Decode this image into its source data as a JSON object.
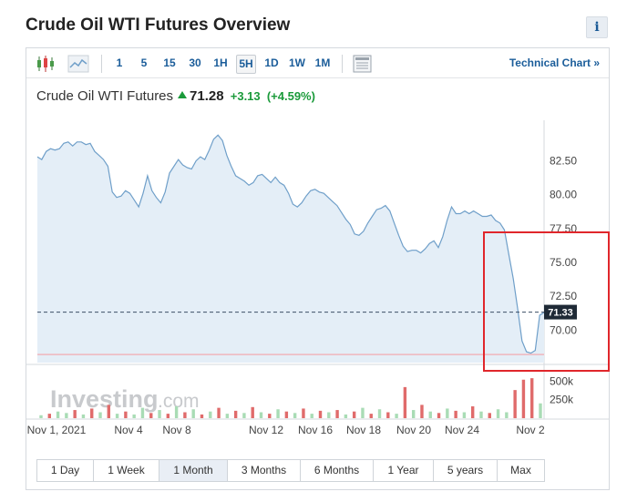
{
  "page": {
    "title": "Crude Oil WTI Futures Overview",
    "info_label": "i"
  },
  "toolbar": {
    "timeframes": [
      "1",
      "5",
      "15",
      "30",
      "1H",
      "5H",
      "1D",
      "1W",
      "1M"
    ],
    "active_timeframe": "5H",
    "technical_chart_label": "Technical Chart »"
  },
  "quote": {
    "name": "Crude Oil WTI Futures",
    "last": "71.28",
    "change": "+3.13",
    "change_pct": "(+4.59%)"
  },
  "ranges": {
    "items": [
      "1 Day",
      "1 Week",
      "1 Month",
      "3 Months",
      "6 Months",
      "1 Year",
      "5 years",
      "Max"
    ],
    "active": "1 Month"
  },
  "watermark": {
    "brand": "Investing",
    "suffix": ".com"
  },
  "colors": {
    "line": "#6f9fc9",
    "area": "#e4eef7",
    "up_volume": "#a9dcb5",
    "down_volume": "#e06b6b",
    "highlight_box": "#e0262b",
    "accent": "#1b5d9a"
  },
  "chart_data": {
    "type": "area",
    "x_tick_labels": [
      "Nov 1, 2021",
      "Nov 4",
      "Nov 8",
      "Nov 12",
      "Nov 16",
      "Nov 18",
      "Nov 20",
      "Nov 24",
      "Nov 2"
    ],
    "y_tick_labels": [
      "82.50",
      "80.00",
      "77.50",
      "75.00",
      "72.50",
      "70.00"
    ],
    "y_ticks": [
      82.5,
      80.0,
      77.5,
      75.0,
      72.5,
      70.0
    ],
    "ylim": [
      67.6,
      85.5
    ],
    "current_price": 71.33,
    "current_price_label": "71.33",
    "lower_reference": 68.2,
    "price": [
      82.8,
      82.6,
      83.2,
      83.4,
      83.3,
      83.4,
      83.8,
      83.9,
      83.6,
      83.9,
      83.9,
      83.7,
      83.8,
      83.2,
      82.9,
      82.6,
      82.1,
      80.2,
      79.8,
      79.9,
      80.3,
      80.1,
      79.6,
      79.1,
      80.1,
      81.4,
      80.3,
      79.8,
      79.4,
      80.2,
      81.6,
      82.1,
      82.6,
      82.2,
      82.0,
      81.9,
      82.5,
      82.8,
      82.6,
      83.3,
      84.1,
      84.4,
      84.0,
      82.9,
      82.1,
      81.4,
      81.2,
      81.0,
      80.7,
      80.9,
      81.4,
      81.5,
      81.2,
      80.9,
      81.3,
      80.9,
      80.7,
      80.1,
      79.3,
      79.1,
      79.4,
      79.9,
      80.3,
      80.4,
      80.2,
      80.1,
      79.8,
      79.5,
      79.2,
      78.7,
      78.2,
      77.8,
      77.1,
      77.0,
      77.3,
      77.9,
      78.4,
      78.9,
      79.0,
      79.2,
      78.8,
      77.9,
      77.0,
      76.2,
      75.8,
      75.9,
      75.9,
      75.7,
      76.0,
      76.4,
      76.6,
      76.1,
      76.9,
      78.1,
      79.1,
      78.6,
      78.6,
      78.8,
      78.6,
      78.8,
      78.6,
      78.4,
      78.4,
      78.5,
      78.1,
      77.9,
      77.4,
      75.6,
      73.8,
      71.6,
      69.2,
      68.4,
      68.3,
      68.5,
      71.1,
      71.3
    ],
    "volume": [
      {
        "v": 40,
        "dir": "up"
      },
      {
        "v": 60,
        "dir": "down"
      },
      {
        "v": 90,
        "dir": "up"
      },
      {
        "v": 70,
        "dir": "up"
      },
      {
        "v": 110,
        "dir": "down"
      },
      {
        "v": 50,
        "dir": "up"
      },
      {
        "v": 130,
        "dir": "down"
      },
      {
        "v": 80,
        "dir": "up"
      },
      {
        "v": 180,
        "dir": "down"
      },
      {
        "v": 60,
        "dir": "up"
      },
      {
        "v": 90,
        "dir": "down"
      },
      {
        "v": 50,
        "dir": "up"
      },
      {
        "v": 140,
        "dir": "up"
      },
      {
        "v": 70,
        "dir": "down"
      },
      {
        "v": 110,
        "dir": "up"
      },
      {
        "v": 60,
        "dir": "down"
      },
      {
        "v": 160,
        "dir": "up"
      },
      {
        "v": 80,
        "dir": "down"
      },
      {
        "v": 120,
        "dir": "up"
      },
      {
        "v": 50,
        "dir": "down"
      },
      {
        "v": 90,
        "dir": "up"
      },
      {
        "v": 140,
        "dir": "down"
      },
      {
        "v": 60,
        "dir": "up"
      },
      {
        "v": 100,
        "dir": "down"
      },
      {
        "v": 70,
        "dir": "up"
      },
      {
        "v": 150,
        "dir": "down"
      },
      {
        "v": 80,
        "dir": "up"
      },
      {
        "v": 60,
        "dir": "down"
      },
      {
        "v": 120,
        "dir": "up"
      },
      {
        "v": 90,
        "dir": "down"
      },
      {
        "v": 70,
        "dir": "up"
      },
      {
        "v": 130,
        "dir": "down"
      },
      {
        "v": 60,
        "dir": "up"
      },
      {
        "v": 100,
        "dir": "down"
      },
      {
        "v": 80,
        "dir": "up"
      },
      {
        "v": 110,
        "dir": "down"
      },
      {
        "v": 50,
        "dir": "up"
      },
      {
        "v": 90,
        "dir": "down"
      },
      {
        "v": 140,
        "dir": "up"
      },
      {
        "v": 60,
        "dir": "down"
      },
      {
        "v": 120,
        "dir": "up"
      },
      {
        "v": 80,
        "dir": "down"
      },
      {
        "v": 60,
        "dir": "up"
      },
      {
        "v": 420,
        "dir": "down"
      },
      {
        "v": 110,
        "dir": "up"
      },
      {
        "v": 180,
        "dir": "down"
      },
      {
        "v": 90,
        "dir": "up"
      },
      {
        "v": 70,
        "dir": "down"
      },
      {
        "v": 130,
        "dir": "up"
      },
      {
        "v": 100,
        "dir": "down"
      },
      {
        "v": 80,
        "dir": "up"
      },
      {
        "v": 160,
        "dir": "down"
      },
      {
        "v": 90,
        "dir": "up"
      },
      {
        "v": 70,
        "dir": "down"
      },
      {
        "v": 120,
        "dir": "up"
      },
      {
        "v": 80,
        "dir": "up"
      },
      {
        "v": 380,
        "dir": "down"
      },
      {
        "v": 520,
        "dir": "down"
      },
      {
        "v": 540,
        "dir": "down"
      },
      {
        "v": 200,
        "dir": "up"
      }
    ],
    "volume_tick_labels": [
      "500k",
      "250k"
    ],
    "volume_ticks": [
      500,
      250
    ],
    "volume_max": 640
  }
}
